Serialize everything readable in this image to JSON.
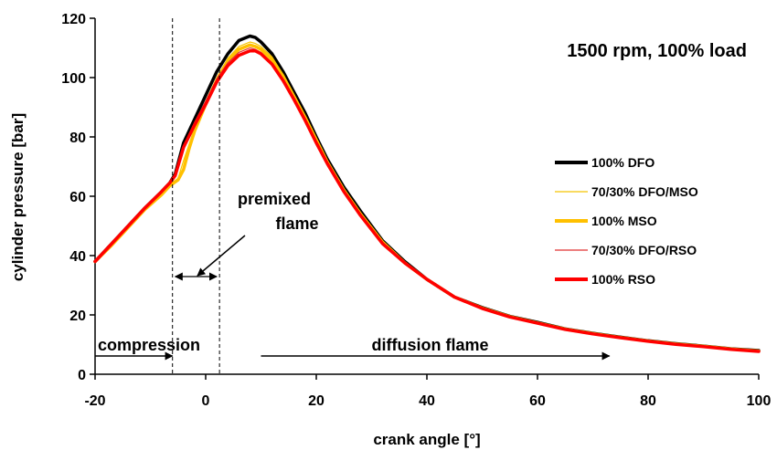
{
  "chart_data": {
    "type": "line",
    "title": "1500 rpm, 100% load",
    "xlabel": "crank angle [°]",
    "ylabel": "cylinder pressure [bar]",
    "xlim": [
      -20,
      100
    ],
    "ylim": [
      0,
      120
    ],
    "xticks": [
      -20,
      0,
      20,
      40,
      60,
      80,
      100
    ],
    "yticks": [
      0,
      20,
      40,
      60,
      80,
      100,
      120
    ],
    "grid": false,
    "legend_position": "right",
    "series": [
      {
        "name": "100% DFO",
        "color": "#000000",
        "width": "thick",
        "x": [
          -20,
          -17,
          -14,
          -11,
          -8,
          -6.5,
          -5.5,
          -4,
          -2,
          0,
          2,
          4,
          6,
          8,
          9,
          10,
          12,
          14,
          16,
          18,
          20,
          22,
          25,
          28,
          32,
          36,
          40,
          45,
          50,
          55,
          60,
          65,
          70,
          75,
          80,
          85,
          90,
          95,
          100
        ],
        "y": [
          38,
          44,
          50,
          56,
          61.5,
          64.5,
          67.5,
          78,
          86,
          94,
          102,
          108,
          112.5,
          114,
          113.5,
          112,
          108,
          102,
          95,
          88,
          80,
          72.5,
          63,
          55,
          45,
          38,
          32,
          26,
          22.5,
          19.5,
          17.5,
          15.3,
          13.8,
          12.5,
          11.3,
          10.3,
          9.5,
          8.6,
          8
        ]
      },
      {
        "name": "70/30% DFO/MSO",
        "color": "#F5C400",
        "width": "thin",
        "x": [
          -20,
          -17,
          -14,
          -11,
          -8,
          -6.5,
          -5,
          -4,
          -2,
          0,
          2,
          4,
          6,
          8,
          9,
          10,
          12,
          14,
          16,
          18,
          20,
          22,
          25,
          28,
          32,
          36,
          40,
          45,
          50,
          55,
          60,
          65,
          70,
          75,
          80,
          85,
          90,
          95,
          100
        ],
        "y": [
          38,
          43.5,
          49.5,
          55.5,
          61,
          64,
          66,
          72,
          83,
          92,
          100,
          106.5,
          110.5,
          112,
          111.5,
          110.5,
          107,
          101,
          94,
          87,
          79.5,
          72,
          62.5,
          54.5,
          45,
          38,
          32,
          26,
          22.5,
          19.5,
          17.5,
          15.3,
          13.8,
          12.5,
          11.3,
          10.3,
          9.5,
          8.6,
          8
        ]
      },
      {
        "name": "100% MSO",
        "color": "#FFC000",
        "width": "thick",
        "x": [
          -20,
          -17,
          -14,
          -11,
          -8,
          -6.5,
          -5,
          -4,
          -3,
          -2,
          0,
          2,
          4,
          6,
          8,
          9,
          10,
          12,
          14,
          16,
          18,
          20,
          22,
          25,
          28,
          32,
          36,
          40,
          45,
          50,
          55,
          60,
          65,
          70,
          75,
          80,
          85,
          90,
          95,
          100
        ],
        "y": [
          38,
          43.5,
          49.5,
          55.5,
          60.5,
          63.5,
          65.5,
          69,
          76,
          82,
          91,
          99,
          105.5,
          109.5,
          111,
          110.5,
          109.5,
          106,
          100.5,
          93.5,
          86.5,
          79,
          71.5,
          62,
          54,
          44.5,
          37.5,
          32,
          26,
          22.3,
          19.4,
          17.3,
          15.2,
          13.7,
          12.4,
          11.2,
          10.2,
          9.4,
          8.5,
          7.8
        ]
      },
      {
        "name": "70/30% DFO/RSO",
        "color": "#E03030",
        "width": "thin",
        "x": [
          -20,
          -17,
          -14,
          -11,
          -8,
          -6.5,
          -5.5,
          -4,
          -2,
          0,
          2,
          4,
          6,
          8,
          9,
          10,
          12,
          14,
          16,
          18,
          20,
          22,
          25,
          28,
          32,
          36,
          40,
          45,
          50,
          55,
          60,
          65,
          70,
          75,
          80,
          85,
          90,
          95,
          100
        ],
        "y": [
          38,
          44,
          50,
          56,
          61.5,
          64.5,
          67,
          77,
          85,
          92,
          99.5,
          105,
          108.5,
          110,
          109.5,
          108.5,
          105,
          99.5,
          93,
          86,
          78.5,
          71.5,
          62,
          54,
          44.5,
          37.5,
          32,
          26,
          22.3,
          19.4,
          17.3,
          15.2,
          13.7,
          12.4,
          11.2,
          10.2,
          9.4,
          8.5,
          7.8
        ]
      },
      {
        "name": "100% RSO",
        "color": "#FF0000",
        "width": "thick",
        "x": [
          -20,
          -17,
          -14,
          -11,
          -8,
          -6.5,
          -5.5,
          -4,
          -2,
          0,
          2,
          4,
          6,
          8,
          9,
          10,
          12,
          14,
          16,
          18,
          20,
          22,
          25,
          28,
          32,
          36,
          40,
          45,
          50,
          55,
          60,
          65,
          70,
          75,
          80,
          85,
          90,
          95,
          100
        ],
        "y": [
          38,
          44,
          50,
          56,
          61.5,
          64.5,
          67,
          76.5,
          84,
          91,
          98.5,
          104,
          107.5,
          109,
          109,
          108,
          104.5,
          99,
          92.5,
          85.5,
          78,
          71,
          61.5,
          53.5,
          44,
          37.5,
          32,
          26,
          22.2,
          19.3,
          17.2,
          15.1,
          13.6,
          12.3,
          11.1,
          10.1,
          9.3,
          8.4,
          7.7
        ]
      }
    ],
    "phase_lines": [
      -6,
      2.5
    ],
    "annotations": {
      "compression": "compression",
      "premixed_line1": "premixed",
      "premixed_line2": "flame",
      "diffusion": "diffusion flame"
    }
  }
}
